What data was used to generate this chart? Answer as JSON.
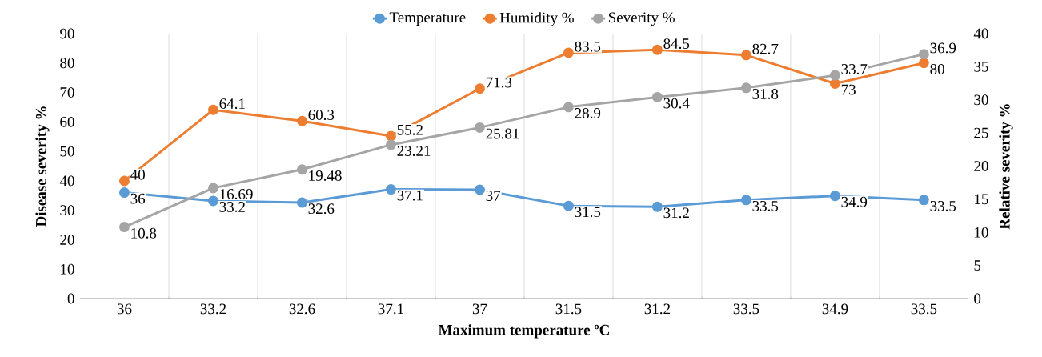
{
  "chart_data": {
    "type": "line",
    "xlabel": "Maximum temperature ºC",
    "ylabel": "Disease severity %",
    "y2label": "Relative severity %",
    "categories": [
      "36",
      "33.2",
      "32.6",
      "37.1",
      "37",
      "31.5",
      "31.2",
      "33.5",
      "34.9",
      "33.5"
    ],
    "series": [
      {
        "name": "Temperature",
        "color": "#5b9bd5",
        "values": [
          36,
          33.2,
          32.6,
          37.1,
          37,
          31.5,
          31.2,
          33.5,
          34.9,
          33.5
        ]
      },
      {
        "name": "Humidity %",
        "color": "#ed7d31",
        "values": [
          40,
          64.1,
          60.3,
          55.2,
          71.3,
          83.5,
          84.5,
          82.7,
          73,
          80
        ]
      },
      {
        "name": "Severity %",
        "color": "#a5a5a5",
        "axis": "y2",
        "values": [
          10.8,
          16.69,
          19.48,
          23.21,
          25.81,
          28.9,
          30.4,
          31.8,
          33.7,
          36.9
        ]
      }
    ],
    "ylim": [
      0,
      90
    ],
    "yticks": [
      0,
      10,
      20,
      30,
      40,
      50,
      60,
      70,
      80,
      90
    ],
    "y2lim": [
      0,
      40
    ],
    "y2ticks": [
      0,
      5,
      10,
      15,
      20,
      25,
      30,
      35,
      40
    ],
    "grid": "x",
    "legend": "top",
    "marker": "circle",
    "line_style": "solid",
    "data_labels": true
  }
}
